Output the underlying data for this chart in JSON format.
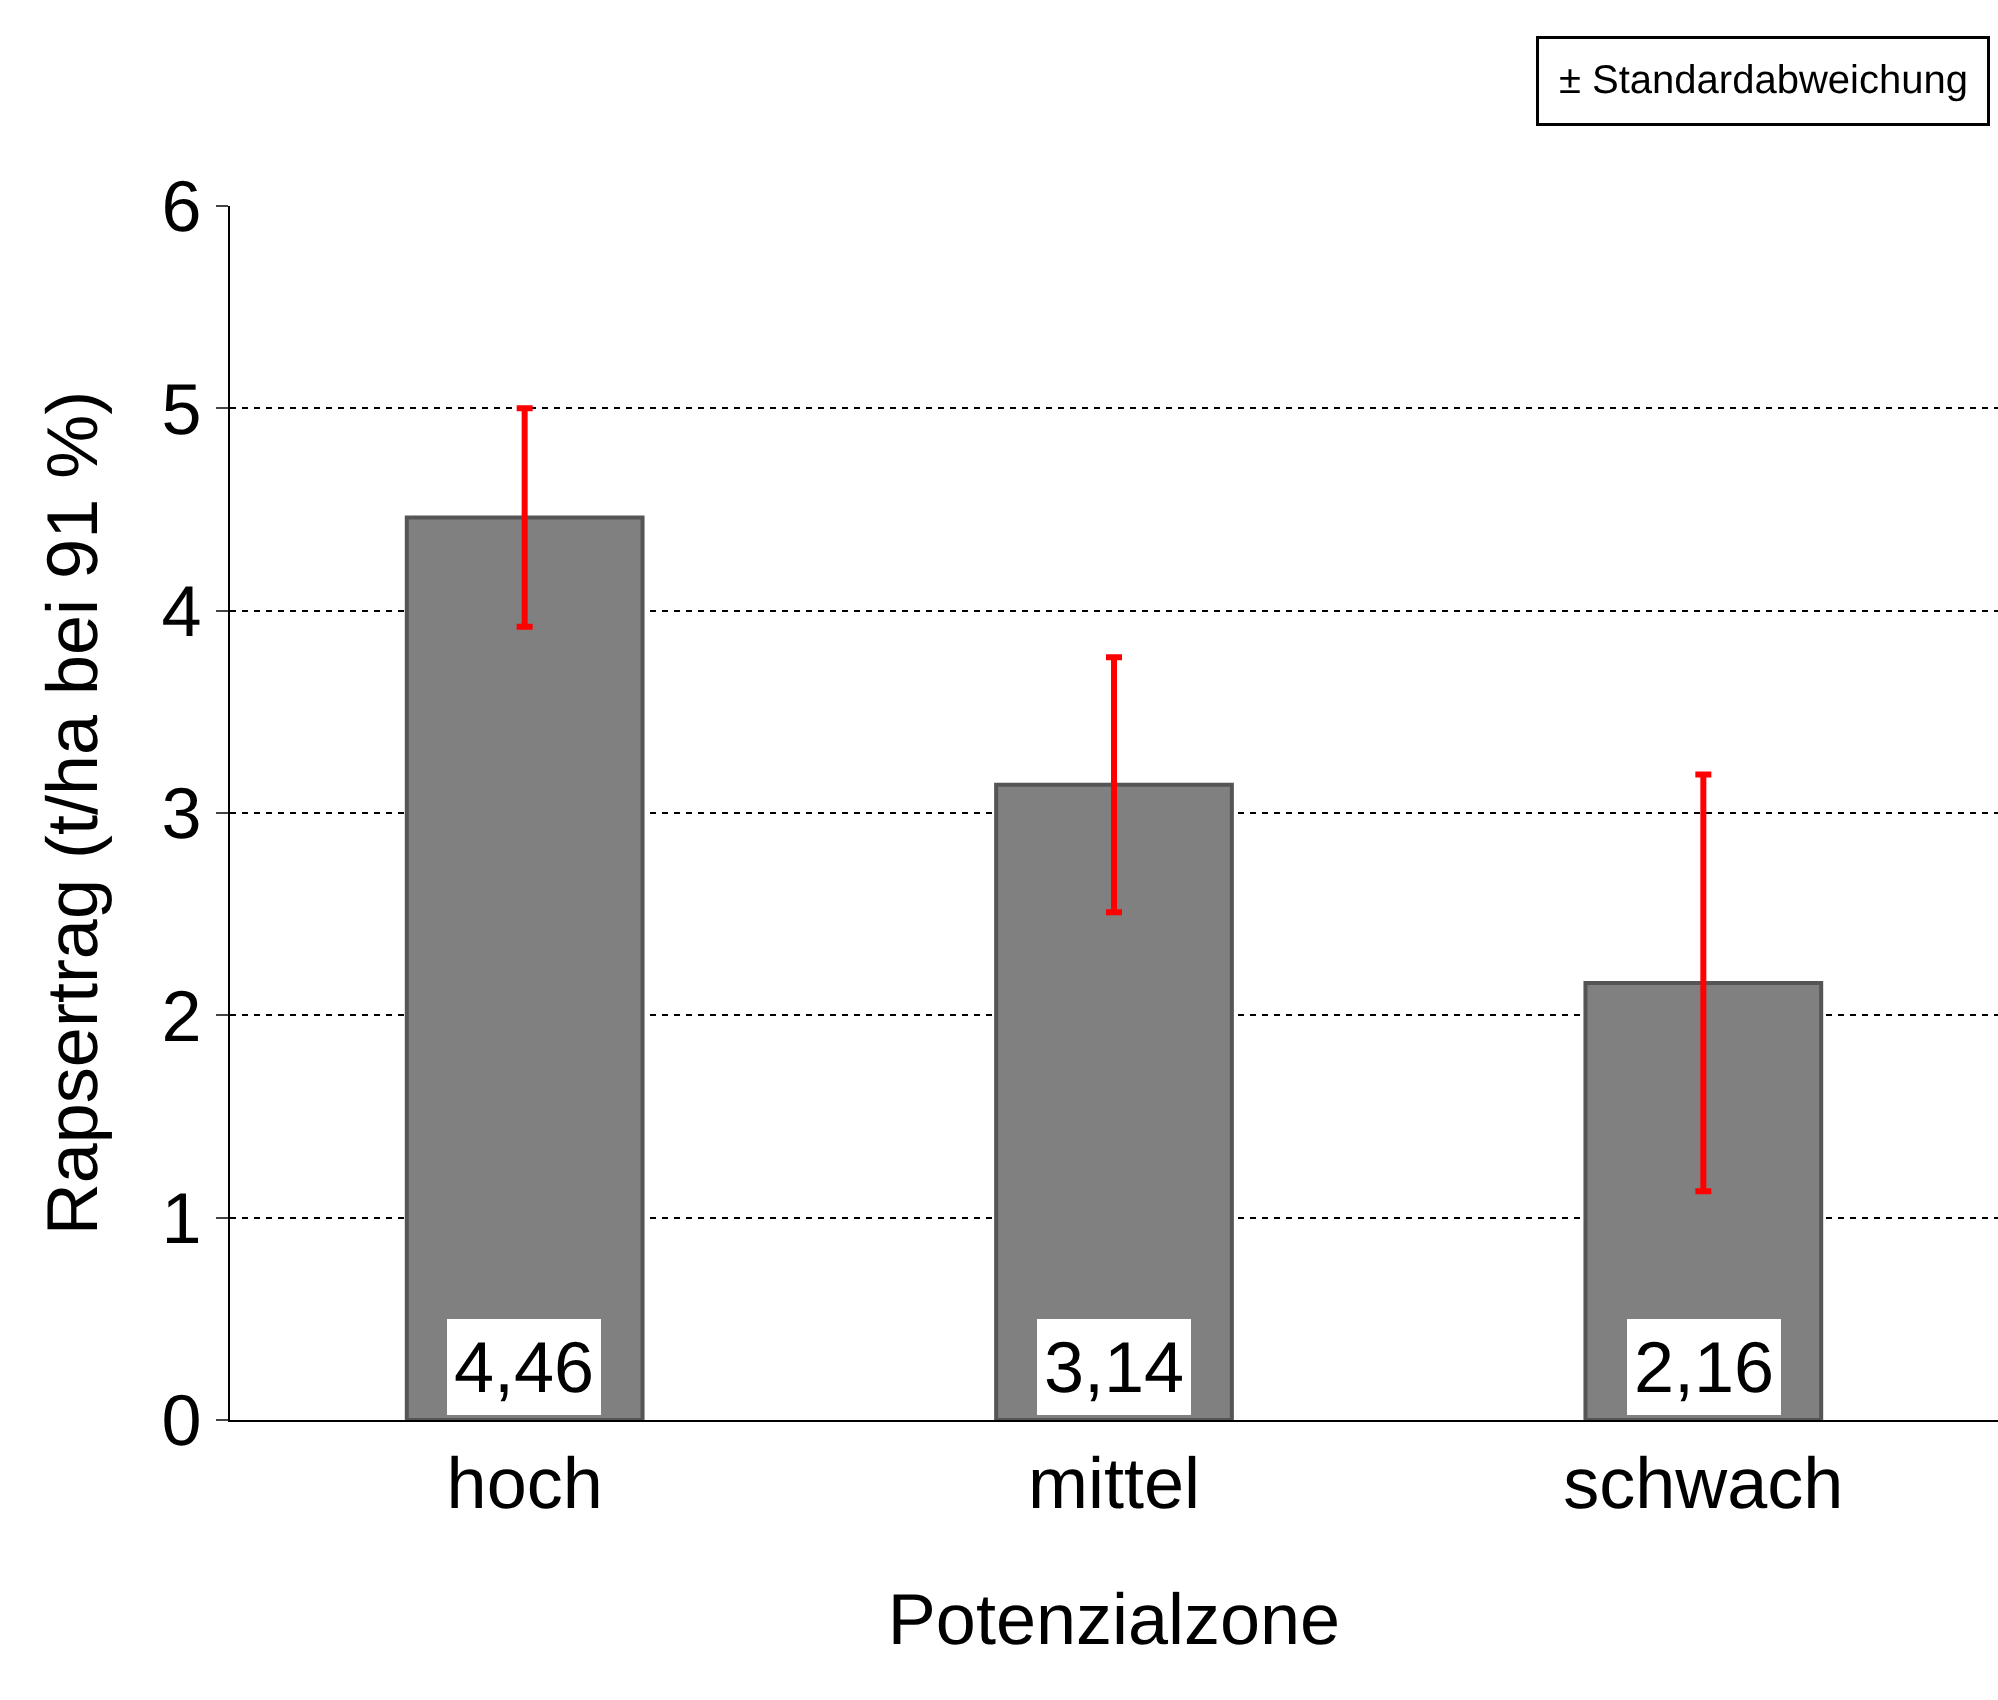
{
  "chart_data": {
    "type": "bar",
    "xlabel": "Potenzialzone",
    "ylabel": "Rapsertrag (t/ha bei 91 %)",
    "categories": [
      "hoch",
      "mittel",
      "schwach"
    ],
    "series": [
      {
        "color": "#808080",
        "values": [
          4.46,
          3.14,
          2.16
        ],
        "errors": [
          0.54,
          0.63,
          1.03
        ],
        "value_labels": [
          "4,46",
          "3,14",
          "2,16"
        ]
      }
    ],
    "ylim": [
      0,
      6
    ],
    "yticks": [
      0,
      1,
      2,
      3,
      4,
      5,
      6
    ],
    "grid": "y",
    "line_style": "dotted",
    "annotations": [
      "± Standardabweichung"
    ]
  }
}
